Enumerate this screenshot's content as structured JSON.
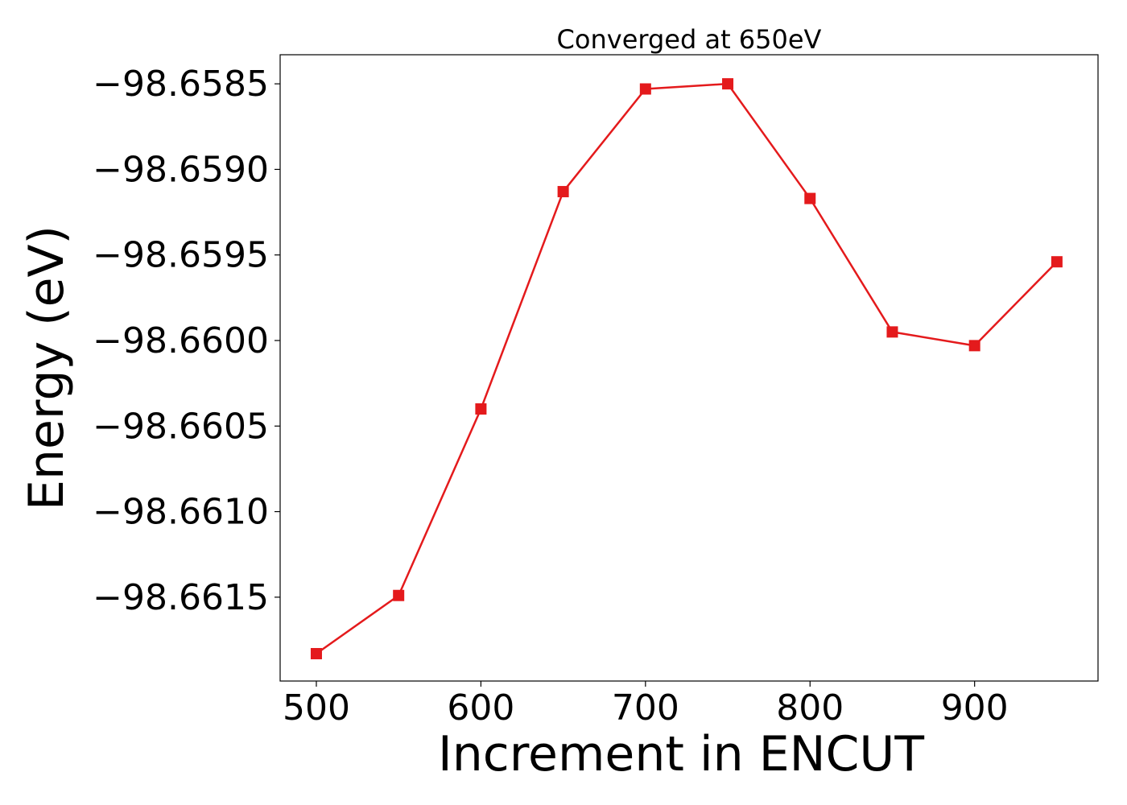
{
  "chart_data": {
    "type": "line",
    "title": "Converged at 650eV",
    "xlabel": "Increment in ENCUT",
    "ylabel": "Energy (eV)",
    "x": [
      500,
      550,
      600,
      650,
      700,
      750,
      800,
      850,
      900,
      950
    ],
    "series": [
      {
        "values": [
          -98.66183,
          -98.66149,
          -98.6604,
          -98.65913,
          -98.65853,
          -98.6585,
          -98.65917,
          -98.65995,
          -98.66003,
          -98.65954
        ],
        "color": "#e41a1c",
        "marker": "square"
      }
    ],
    "xlim": [
      478,
      975
    ],
    "ylim": [
      -98.66199,
      -98.65833
    ],
    "xticks": [
      500,
      600,
      700,
      800,
      900
    ],
    "xtick_labels": [
      "500",
      "600",
      "700",
      "800",
      "900"
    ],
    "yticks": [
      -98.6615,
      -98.661,
      -98.6605,
      -98.66,
      -98.6595,
      -98.659,
      -98.6585
    ],
    "ytick_labels": [
      "−98.6615",
      "−98.6610",
      "−98.6605",
      "−98.6600",
      "−98.6595",
      "−98.6590",
      "−98.6585"
    ],
    "grid": false,
    "legend": "none"
  }
}
